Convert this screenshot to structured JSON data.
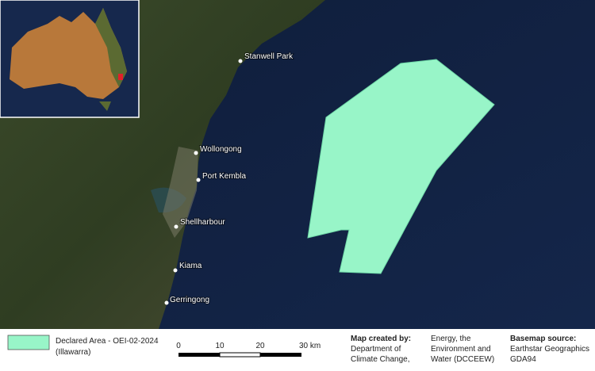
{
  "map": {
    "places": [
      "Stanwell Park",
      "Wollongong",
      "Port Kembla",
      "Shellharbour",
      "Kiama",
      "Gerringong"
    ]
  },
  "legend": {
    "lines": [
      "Declared Area - OEI-02-2024",
      "(Illawarra)"
    ]
  },
  "scale_bar": {
    "labels": [
      "0",
      "10",
      "20",
      "30 km"
    ]
  },
  "credits": {
    "created_heading": "Map created by:",
    "created_lines": [
      "Department of",
      "Climate Change,",
      "Energy, the",
      "Environment and",
      "Water (DCCEEW)"
    ],
    "basemap_heading": "Basemap source:",
    "basemap_lines": [
      "Earthstar Geographics",
      "GDA94"
    ]
  }
}
